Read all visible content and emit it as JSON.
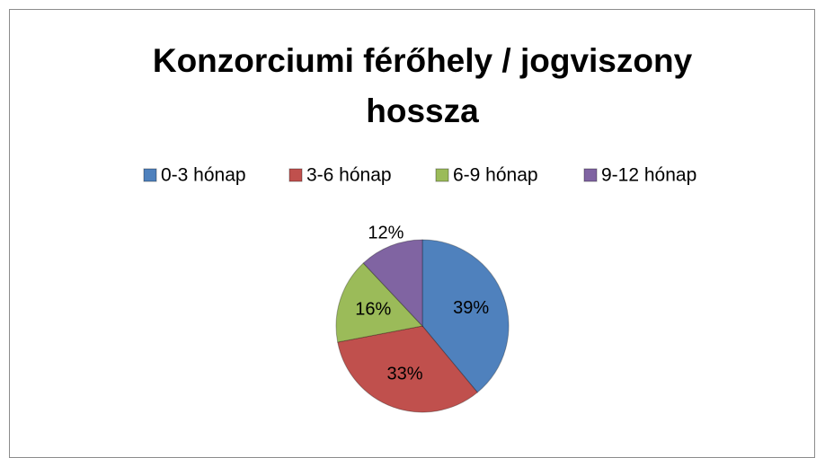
{
  "chart_data": {
    "type": "pie",
    "title": "Konzorciumi férőhely / jogviszony hossza",
    "categories": [
      "0-3 hónap",
      "3-6 hónap",
      "6-9 hónap",
      "9-12 hónap"
    ],
    "values": [
      39,
      33,
      16,
      12
    ],
    "value_labels": [
      "39%",
      "33%",
      "16%",
      "12%"
    ],
    "colors": [
      "#4f81bd",
      "#c0504d",
      "#9bbb59",
      "#8064a2"
    ],
    "legend": "top"
  }
}
